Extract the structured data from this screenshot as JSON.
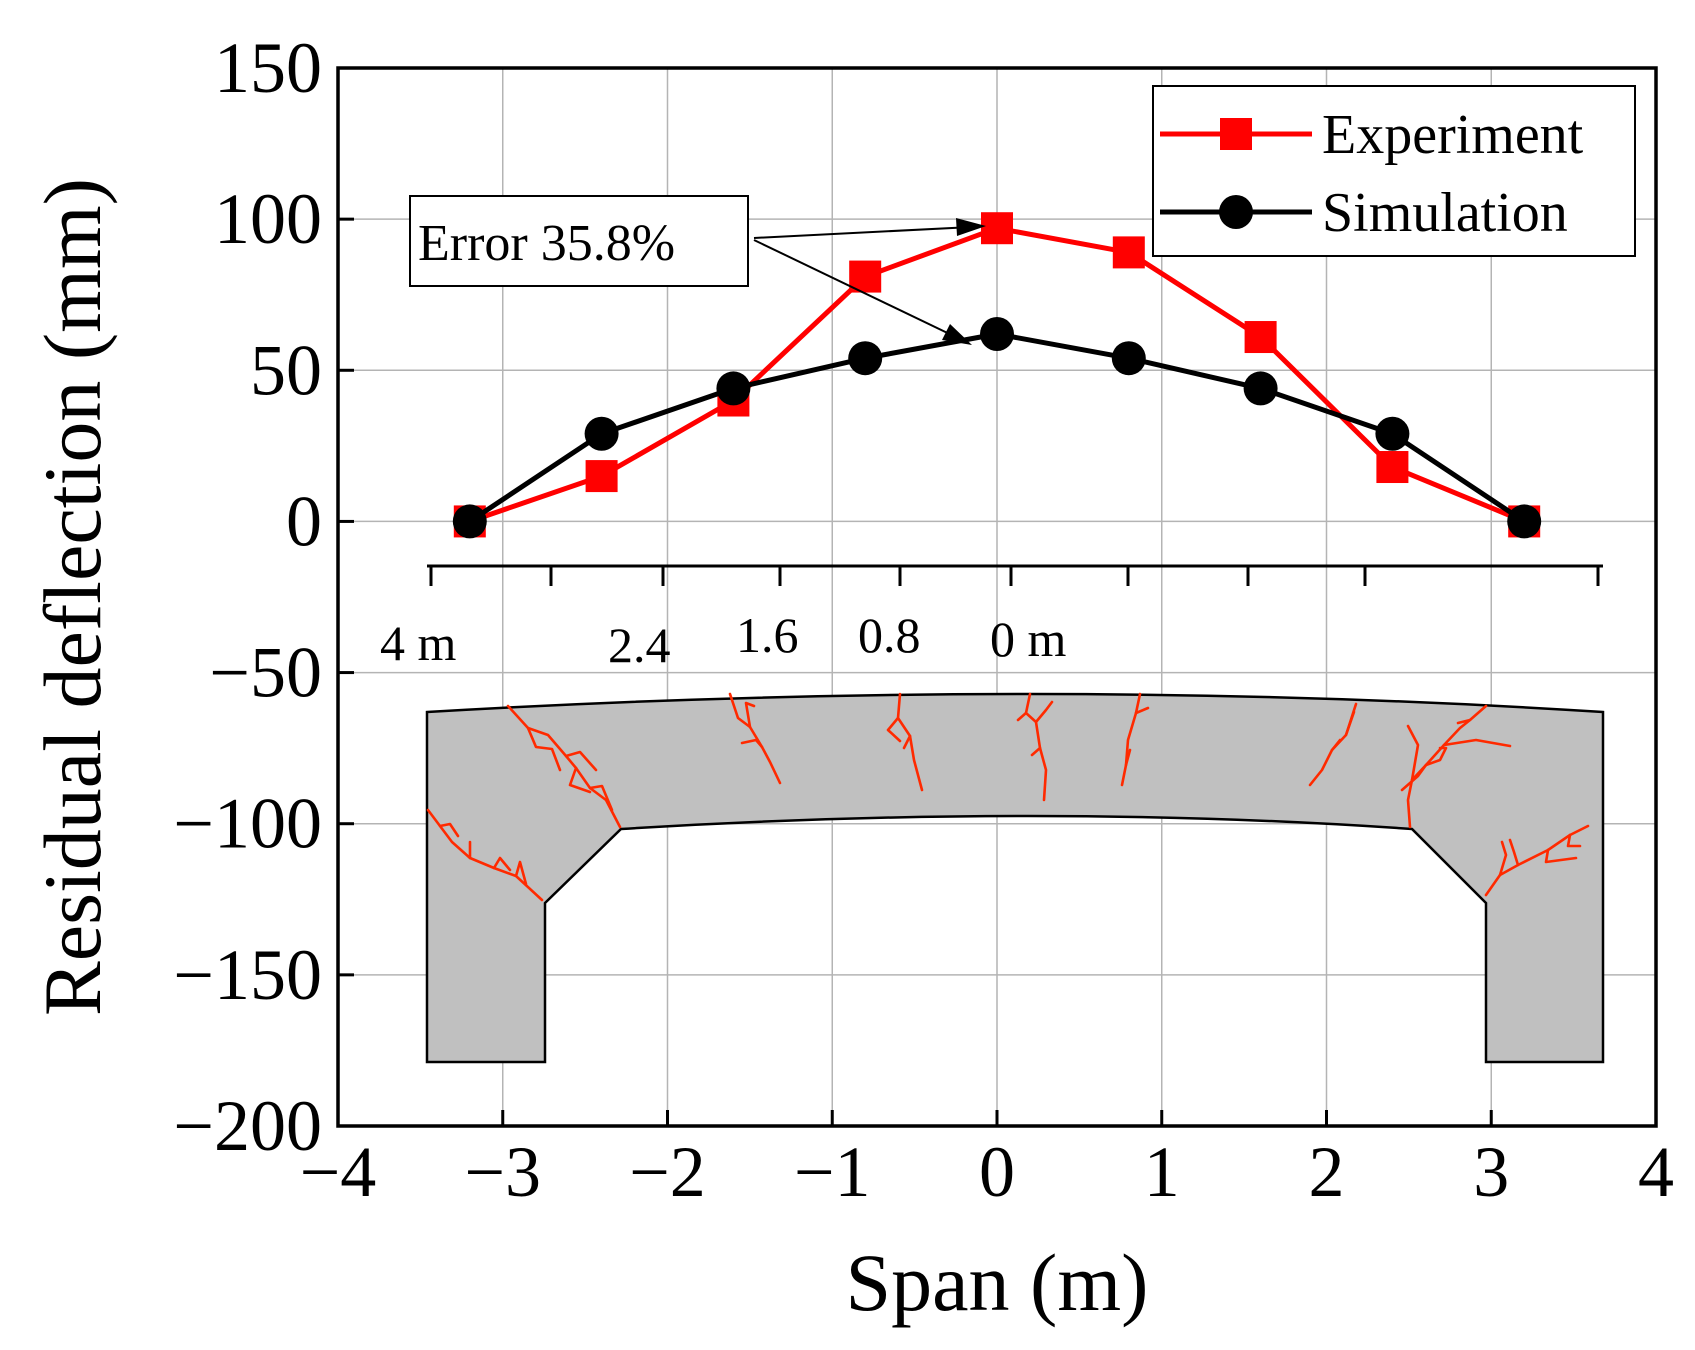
{
  "chart_data": {
    "type": "line",
    "title": "",
    "xlabel": "Span (m)",
    "ylabel": "Residual deflection (mm)",
    "xlim": [
      -4,
      4
    ],
    "ylim": [
      -200,
      150
    ],
    "xticks": [
      -4,
      -3,
      -2,
      -1,
      0,
      1,
      2,
      3,
      4
    ],
    "yticks": [
      150,
      100,
      50,
      0,
      -50,
      -100,
      -150,
      -200
    ],
    "xtick_labels": [
      "−4",
      "−3",
      "−2",
      "−1",
      "0",
      "1",
      "2",
      "3",
      "4"
    ],
    "ytick_labels": [
      "150",
      "100",
      "50",
      "0",
      "−50",
      "−100",
      "−150",
      "−200"
    ],
    "grid": true,
    "legend_position": "top-right",
    "series": [
      {
        "name": "Experiment",
        "color": "#ff0000",
        "marker": "square",
        "x": [
          -3.2,
          -2.4,
          -1.6,
          -0.8,
          0,
          0.8,
          1.6,
          2.4,
          3.2
        ],
        "y": [
          0,
          15,
          40,
          81,
          97,
          89,
          61,
          18,
          0
        ]
      },
      {
        "name": "Simulation",
        "color": "#000000",
        "marker": "circle",
        "x": [
          -3.2,
          -2.4,
          -1.6,
          -0.8,
          0,
          0.8,
          1.6,
          2.4,
          3.2
        ],
        "y": [
          0,
          29,
          44,
          54,
          62,
          54,
          44,
          29,
          0
        ]
      }
    ],
    "annotations": [
      {
        "text": "Error 35.8%",
        "arrow_targets": [
          {
            "x": -0.08,
            "y": 97
          },
          {
            "x": -0.12,
            "y": 60
          }
        ]
      }
    ],
    "inset": {
      "description": "frame with crack pattern",
      "scale_labels": [
        "4 m",
        "2.4",
        "1.6",
        "0.8",
        "0 m"
      ],
      "fill_color": "#c0c0c0",
      "crack_color": "#ff2a00"
    }
  }
}
